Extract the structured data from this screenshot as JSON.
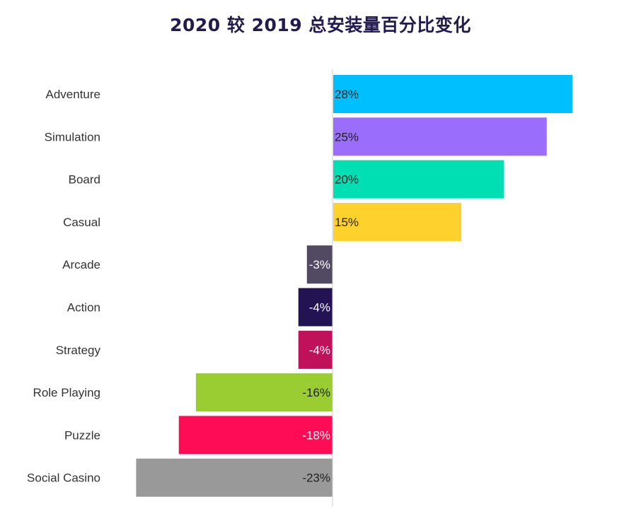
{
  "chart_data": {
    "type": "bar",
    "orientation": "horizontal",
    "title": "2020 较 2019 总安装量百分比变化",
    "xlabel": "",
    "ylabel": "",
    "grid": false,
    "categories": [
      "Adventure",
      "Simulation",
      "Board",
      "Casual",
      "Arcade",
      "Action",
      "Strategy",
      "Role Playing",
      "Puzzle",
      "Social Casino"
    ],
    "values": [
      28,
      25,
      20,
      15,
      -3,
      -4,
      -4,
      -16,
      -18,
      -23
    ],
    "value_labels": [
      "28%",
      "25%",
      "20%",
      "15%",
      "-3%",
      "-4%",
      "-4%",
      "-16%",
      "-18%",
      "-23%"
    ],
    "colors": [
      "#00bfff",
      "#9b6dfd",
      "#00dfb3",
      "#ffd12c",
      "#514a62",
      "#231352",
      "#c0115b",
      "#9acd32",
      "#ff0b56",
      "#999999"
    ],
    "label_colors": [
      "#222222",
      "#222222",
      "#222222",
      "#222222",
      "#ffffff",
      "#ffffff",
      "#ffffff",
      "#222222",
      "#ffffff",
      "#222222"
    ]
  }
}
